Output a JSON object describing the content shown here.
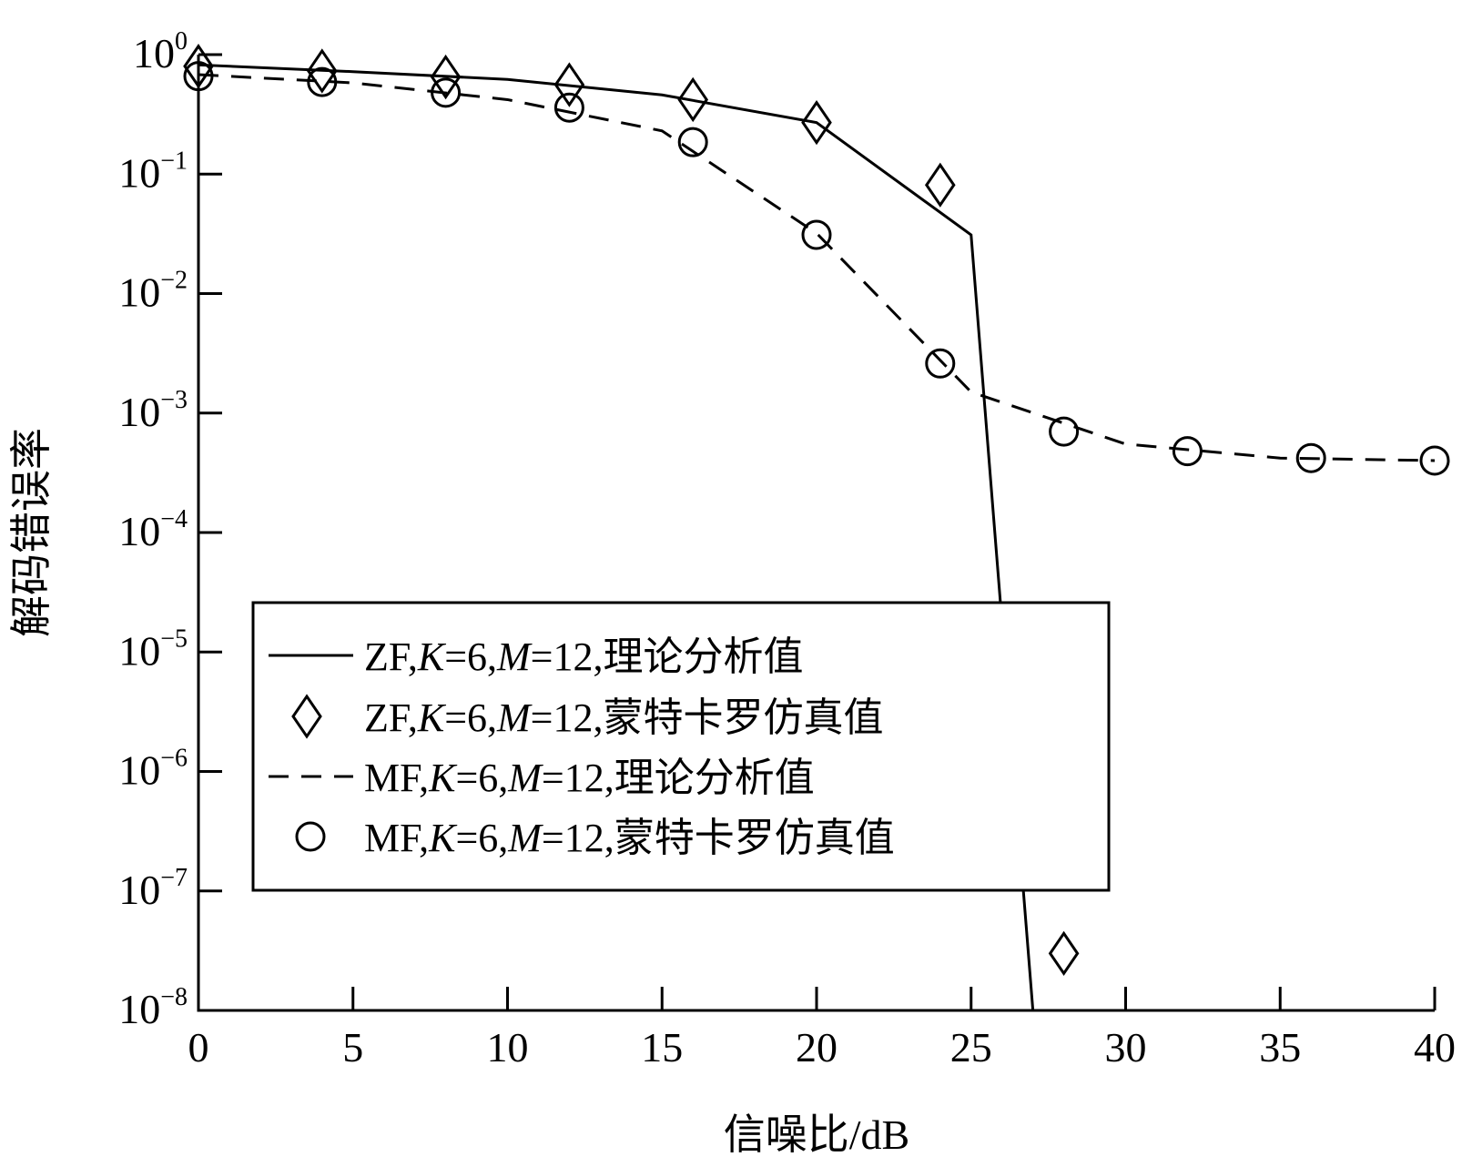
{
  "chart_data": {
    "type": "line",
    "title": "",
    "xlabel": "信噪比/dB",
    "ylabel": "解码错误率",
    "yscale": "log",
    "xlim": [
      0,
      40
    ],
    "ylim": [
      1e-08,
      1
    ],
    "xticks": [
      0,
      5,
      10,
      15,
      20,
      25,
      30,
      35,
      40
    ],
    "xtick_labels": [
      "0",
      "5",
      "10",
      "15",
      "20",
      "25",
      "30",
      "35",
      "40"
    ],
    "yticks": [
      {
        "exp": 0,
        "base": "10",
        "sup": "0"
      },
      {
        "exp": -1,
        "base": "10",
        "sup": "−1"
      },
      {
        "exp": -2,
        "base": "10",
        "sup": "−2"
      },
      {
        "exp": -3,
        "base": "10",
        "sup": "−3"
      },
      {
        "exp": -4,
        "base": "10",
        "sup": "−4"
      },
      {
        "exp": -5,
        "base": "10",
        "sup": "−5"
      },
      {
        "exp": -6,
        "base": "10",
        "sup": "−6"
      },
      {
        "exp": -7,
        "base": "10",
        "sup": "−7"
      },
      {
        "exp": -8,
        "base": "10",
        "sup": "−8"
      }
    ],
    "grid": false,
    "legend_position": "center-left",
    "series": [
      {
        "key": "zf_theory",
        "style": "solid",
        "marker": "none",
        "x": [
          0,
          5,
          10,
          15,
          20,
          25,
          27
        ],
        "y": [
          0.82,
          0.72,
          0.62,
          0.46,
          0.27,
          0.031,
          1e-08
        ],
        "legend": {
          "prefix": "ZF,",
          "k_var": "K",
          "k_eq": "=6,",
          "m_var": "M",
          "m_eq": "=12,",
          "suffix": "理论分析值"
        }
      },
      {
        "key": "zf_sim",
        "style": "none",
        "marker": "diamond",
        "x": [
          0,
          4,
          8,
          12,
          16,
          20,
          24,
          28
        ],
        "y": [
          0.8,
          0.73,
          0.65,
          0.56,
          0.42,
          0.27,
          0.081,
          3e-08
        ],
        "legend": {
          "prefix": "ZF,",
          "k_var": "K",
          "k_eq": "=6,",
          "m_var": "M",
          "m_eq": "=12,",
          "suffix": "蒙特卡罗仿真值"
        }
      },
      {
        "key": "mf_theory",
        "style": "dashed",
        "marker": "none",
        "x": [
          0,
          5,
          10,
          15,
          20,
          25,
          30,
          35,
          40
        ],
        "y": [
          0.68,
          0.58,
          0.42,
          0.23,
          0.032,
          0.0015,
          0.00055,
          0.00042,
          0.0004
        ],
        "legend": {
          "prefix": "MF,",
          "k_var": "K",
          "k_eq": "=6,",
          "m_var": "M",
          "m_eq": "=12,",
          "suffix": "理论分析值"
        }
      },
      {
        "key": "mf_sim",
        "style": "none",
        "marker": "circle",
        "x": [
          0,
          4,
          8,
          12,
          16,
          20,
          24,
          28,
          32,
          36,
          40
        ],
        "y": [
          0.66,
          0.59,
          0.48,
          0.36,
          0.185,
          0.031,
          0.0026,
          0.0007,
          0.00048,
          0.00042,
          0.0004
        ],
        "legend": {
          "prefix": "MF,",
          "k_var": "K",
          "k_eq": "=6,",
          "m_var": "M",
          "m_eq": "=12,",
          "suffix": "蒙特卡罗仿真值"
        }
      }
    ],
    "colors": {
      "line": "#000000",
      "background": "#ffffff"
    }
  }
}
